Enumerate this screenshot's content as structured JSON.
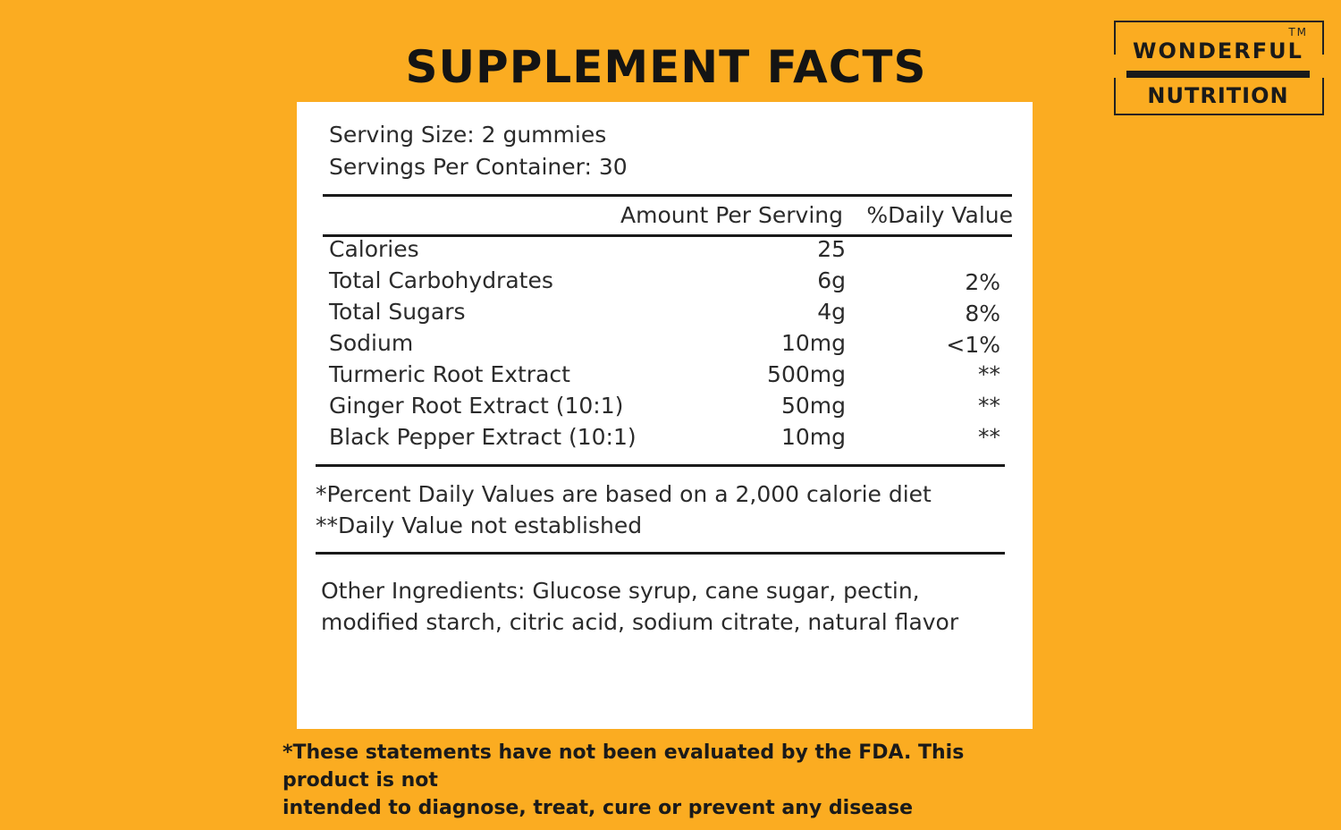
{
  "title": "SUPPLEMENT FACTS",
  "logo": {
    "tm": "TM",
    "line1": "WONDERFUL",
    "line2": "NUTRITION"
  },
  "serving": {
    "size": "Serving Size: 2 gummies",
    "per_container": "Servings Per Container: 30"
  },
  "table": {
    "header_amount": "Amount Per Serving",
    "header_dv": "%Daily Value",
    "rows": [
      {
        "label": "Calories",
        "amount": "25",
        "dv": ""
      },
      {
        "label": "Total Carbohydrates",
        "amount": "6g",
        "dv": "2%"
      },
      {
        "label": "Total Sugars",
        "amount": "4g",
        "dv": "8%"
      },
      {
        "label": "Sodium",
        "amount": "10mg",
        "dv": "<1%"
      },
      {
        "label": "Turmeric Root Extract",
        "amount": "500mg",
        "dv": "**"
      },
      {
        "label": "Ginger Root Extract (10:1)",
        "amount": "50mg",
        "dv": "**"
      },
      {
        "label": "Black Pepper Extract (10:1)",
        "amount": "10mg",
        "dv": "**"
      }
    ]
  },
  "footnotes": {
    "line1": "*Percent Daily Values are based on a 2,000 calorie diet",
    "line2": "**Daily Value not established"
  },
  "other_ingredients": {
    "line1": "Other Ingredients: Glucose syrup, cane sugar, pectin,",
    "line2": "modified starch, citric acid, sodium citrate, natural flavor"
  },
  "disclaimer": {
    "line1": "*These statements have not been evaluated by the FDA. This product is not",
    "line2": "intended to diagnose, treat, cure or prevent any disease"
  }
}
